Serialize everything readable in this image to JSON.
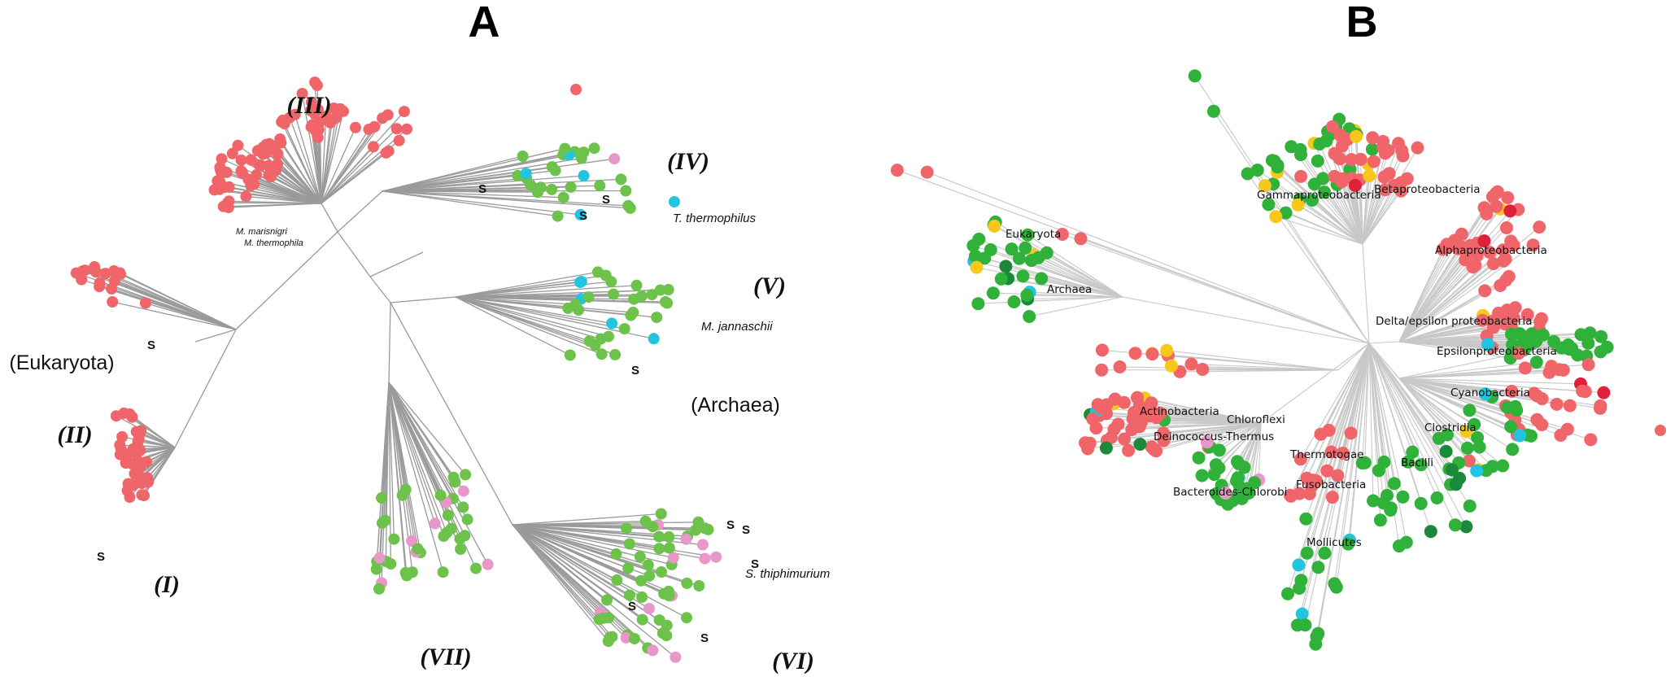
{
  "panel_a": {
    "letter": "A",
    "clade_labels": [
      "(III)",
      "(IV)",
      "(V)",
      "(II)",
      "(I)",
      "(VII)",
      "(VI)"
    ],
    "group_labels": [
      "(Eukaryota)",
      "(Archaea)"
    ],
    "species": [
      "M. marisnigri",
      "M. thermophila",
      "T. thermophilus",
      "M. jannaschii",
      "S. thiphimurium"
    ],
    "s_mark": "S"
  },
  "panel_b": {
    "letter": "B",
    "taxa": [
      "Gammaproteobacteria",
      "Betaproteobacteria",
      "Eukaryota",
      "Archaea",
      "Alphaproteobacteria",
      "Delta/epsilon proteobacteria",
      "Epsilonproteobacteria",
      "Cyanobacteria",
      "Actinobacteria",
      "Chloroflexi",
      "Deinococcus-Thermus",
      "Clostridia",
      "Thermotogae",
      "Bacilli",
      "Bacteroides-Chlorobi",
      "Fusobacteria",
      "Mollicutes"
    ]
  },
  "colors": {
    "red": "#f0656a",
    "green": "#6cc24a",
    "green_b": "#2fb13a",
    "dark_green": "#1a8a3a",
    "cyan": "#22c4e0",
    "pink": "#e898c8",
    "yellow": "#f7c81b",
    "crimson": "#e0203a"
  }
}
